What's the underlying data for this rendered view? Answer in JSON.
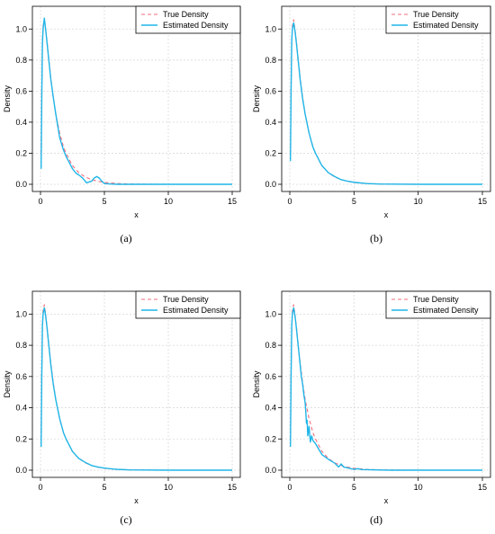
{
  "colors": {
    "true_density": "#f26d7d",
    "estimated_density": "#1fb6e8",
    "grid": "#d9d9d9",
    "axis": "#000000"
  },
  "chart_data": [
    {
      "type": "line",
      "caption": "(a)",
      "xlabel": "x",
      "ylabel": "Density",
      "xlim": [
        0,
        15
      ],
      "ylim": [
        0,
        1.1
      ],
      "xticks": [
        0,
        5,
        10,
        15
      ],
      "yticks": [
        0.0,
        0.2,
        0.4,
        0.6,
        0.8,
        1.0
      ],
      "grid": true,
      "legend_position": "top-right",
      "series": [
        {
          "name": "True Density",
          "style": "dashed",
          "color": "#f26d7d",
          "x": [
            0.05,
            0.1,
            0.15,
            0.2,
            0.3,
            0.4,
            0.5,
            0.6,
            0.7,
            0.8,
            1.0,
            1.2,
            1.5,
            1.8,
            2.0,
            2.5,
            3.0,
            3.5,
            4.0,
            4.5,
            5.0,
            6.0,
            7.0,
            8.0,
            10.0,
            12.0,
            15.0
          ],
          "y": [
            0.2,
            0.62,
            0.9,
            1.02,
            1.06,
            1.0,
            0.93,
            0.85,
            0.77,
            0.69,
            0.56,
            0.45,
            0.33,
            0.24,
            0.2,
            0.12,
            0.075,
            0.047,
            0.03,
            0.019,
            0.012,
            0.005,
            0.002,
            0.001,
            0.0,
            0.0,
            0.0
          ]
        },
        {
          "name": "Estimated Density",
          "style": "solid",
          "color": "#1fb6e8",
          "x": [
            0.05,
            0.1,
            0.15,
            0.2,
            0.3,
            0.4,
            0.5,
            0.6,
            0.7,
            0.8,
            1.0,
            1.2,
            1.3,
            1.5,
            1.8,
            2.0,
            2.5,
            2.8,
            3.0,
            3.3,
            3.6,
            4.0,
            4.2,
            4.4,
            4.6,
            4.8,
            5.0,
            5.5,
            6.0,
            7.0,
            8.0,
            10.0,
            12.0,
            15.0
          ],
          "y": [
            0.1,
            0.55,
            0.9,
            1.0,
            1.07,
            1.0,
            0.92,
            0.84,
            0.76,
            0.68,
            0.56,
            0.45,
            0.4,
            0.3,
            0.22,
            0.18,
            0.1,
            0.07,
            0.06,
            0.04,
            0.01,
            0.02,
            0.04,
            0.05,
            0.04,
            0.02,
            0.005,
            0.002,
            0.0,
            0.0,
            0.0,
            0.0,
            0.0,
            0.0
          ]
        }
      ]
    },
    {
      "type": "line",
      "caption": "(b)",
      "xlabel": "x",
      "ylabel": "Density",
      "xlim": [
        0,
        15
      ],
      "ylim": [
        0,
        1.1
      ],
      "xticks": [
        0,
        5,
        10,
        15
      ],
      "yticks": [
        0.0,
        0.2,
        0.4,
        0.6,
        0.8,
        1.0
      ],
      "grid": true,
      "legend_position": "top-right",
      "series": [
        {
          "name": "True Density",
          "style": "dashed",
          "color": "#f26d7d",
          "x": [
            0.05,
            0.1,
            0.15,
            0.2,
            0.3,
            0.4,
            0.5,
            0.6,
            0.7,
            0.8,
            1.0,
            1.2,
            1.5,
            1.8,
            2.0,
            2.5,
            3.0,
            3.5,
            4.0,
            4.5,
            5.0,
            6.0,
            7.0,
            8.0,
            10.0,
            12.0,
            15.0
          ],
          "y": [
            0.2,
            0.62,
            0.9,
            1.02,
            1.06,
            1.0,
            0.93,
            0.85,
            0.77,
            0.69,
            0.56,
            0.45,
            0.33,
            0.24,
            0.2,
            0.12,
            0.075,
            0.047,
            0.03,
            0.019,
            0.012,
            0.005,
            0.002,
            0.001,
            0.0,
            0.0,
            0.0
          ]
        },
        {
          "name": "Estimated Density",
          "style": "solid",
          "color": "#1fb6e8",
          "x": [
            0.05,
            0.1,
            0.15,
            0.2,
            0.3,
            0.4,
            0.5,
            0.6,
            0.7,
            0.8,
            1.0,
            1.2,
            1.5,
            1.8,
            2.0,
            2.5,
            3.0,
            3.5,
            4.0,
            4.5,
            5.0,
            6.0,
            7.0,
            8.0,
            10.0,
            12.0,
            15.0
          ],
          "y": [
            0.15,
            0.6,
            0.92,
            1.0,
            1.04,
            0.99,
            0.92,
            0.84,
            0.76,
            0.68,
            0.55,
            0.45,
            0.33,
            0.24,
            0.2,
            0.12,
            0.075,
            0.05,
            0.03,
            0.02,
            0.013,
            0.005,
            0.002,
            0.001,
            0.0,
            0.0,
            0.0
          ]
        }
      ]
    },
    {
      "type": "line",
      "caption": "(c)",
      "xlabel": "x",
      "ylabel": "Density",
      "xlim": [
        0,
        15
      ],
      "ylim": [
        0,
        1.1
      ],
      "xticks": [
        0,
        5,
        10,
        15
      ],
      "yticks": [
        0.0,
        0.2,
        0.4,
        0.6,
        0.8,
        1.0
      ],
      "grid": true,
      "legend_position": "top-right",
      "series": [
        {
          "name": "True Density",
          "style": "dashed",
          "color": "#f26d7d",
          "x": [
            0.05,
            0.1,
            0.15,
            0.2,
            0.3,
            0.4,
            0.5,
            0.6,
            0.7,
            0.8,
            1.0,
            1.2,
            1.5,
            1.8,
            2.0,
            2.5,
            3.0,
            3.5,
            4.0,
            4.5,
            5.0,
            6.0,
            7.0,
            8.0,
            10.0,
            12.0,
            15.0
          ],
          "y": [
            0.2,
            0.62,
            0.9,
            1.02,
            1.06,
            1.0,
            0.93,
            0.85,
            0.77,
            0.69,
            0.56,
            0.45,
            0.33,
            0.24,
            0.2,
            0.12,
            0.075,
            0.047,
            0.03,
            0.019,
            0.012,
            0.005,
            0.002,
            0.001,
            0.0,
            0.0,
            0.0
          ]
        },
        {
          "name": "Estimated Density",
          "style": "solid",
          "color": "#1fb6e8",
          "x": [
            0.05,
            0.1,
            0.15,
            0.2,
            0.3,
            0.4,
            0.5,
            0.6,
            0.7,
            0.8,
            1.0,
            1.2,
            1.5,
            1.8,
            2.0,
            2.5,
            3.0,
            3.5,
            4.0,
            4.5,
            5.0,
            6.0,
            7.0,
            8.0,
            10.0,
            12.0,
            15.0
          ],
          "y": [
            0.15,
            0.6,
            0.92,
            1.0,
            1.04,
            0.99,
            0.92,
            0.84,
            0.76,
            0.68,
            0.55,
            0.45,
            0.33,
            0.24,
            0.2,
            0.12,
            0.075,
            0.05,
            0.03,
            0.02,
            0.013,
            0.005,
            0.002,
            0.001,
            0.0,
            0.0,
            0.0
          ]
        }
      ]
    },
    {
      "type": "line",
      "caption": "(d)",
      "xlabel": "x",
      "ylabel": "Density",
      "xlim": [
        0,
        15
      ],
      "ylim": [
        0,
        1.1
      ],
      "xticks": [
        0,
        5,
        10,
        15
      ],
      "yticks": [
        0.0,
        0.2,
        0.4,
        0.6,
        0.8,
        1.0
      ],
      "grid": true,
      "legend_position": "top-right",
      "series": [
        {
          "name": "True Density",
          "style": "dashed",
          "color": "#f26d7d",
          "x": [
            0.05,
            0.1,
            0.15,
            0.2,
            0.3,
            0.4,
            0.5,
            0.6,
            0.7,
            0.8,
            1.0,
            1.2,
            1.5,
            1.8,
            2.0,
            2.5,
            3.0,
            3.5,
            4.0,
            4.5,
            5.0,
            6.0,
            7.0,
            8.0,
            10.0,
            12.0,
            15.0
          ],
          "y": [
            0.2,
            0.62,
            0.9,
            1.02,
            1.06,
            1.0,
            0.93,
            0.85,
            0.77,
            0.69,
            0.56,
            0.45,
            0.33,
            0.24,
            0.2,
            0.12,
            0.075,
            0.047,
            0.03,
            0.019,
            0.012,
            0.005,
            0.002,
            0.001,
            0.0,
            0.0,
            0.0
          ]
        },
        {
          "name": "Estimated Density",
          "style": "solid",
          "color": "#1fb6e8",
          "x": [
            0.05,
            0.1,
            0.15,
            0.2,
            0.3,
            0.4,
            0.5,
            0.6,
            0.7,
            0.8,
            0.9,
            1.0,
            1.1,
            1.2,
            1.3,
            1.35,
            1.4,
            1.5,
            1.6,
            1.7,
            1.8,
            2.0,
            2.5,
            3.0,
            3.5,
            3.8,
            4.0,
            4.2,
            4.5,
            5.0,
            5.3,
            5.6,
            6.0,
            7.0,
            8.0,
            10.0,
            12.0,
            15.0
          ],
          "y": [
            0.15,
            0.6,
            0.92,
            1.0,
            1.04,
            0.99,
            0.92,
            0.84,
            0.76,
            0.68,
            0.6,
            0.55,
            0.48,
            0.43,
            0.3,
            0.32,
            0.22,
            0.28,
            0.18,
            0.22,
            0.19,
            0.17,
            0.1,
            0.07,
            0.045,
            0.02,
            0.04,
            0.02,
            0.015,
            0.005,
            0.01,
            0.004,
            0.003,
            0.001,
            0.0,
            0.0,
            0.0,
            0.0
          ]
        }
      ]
    }
  ]
}
